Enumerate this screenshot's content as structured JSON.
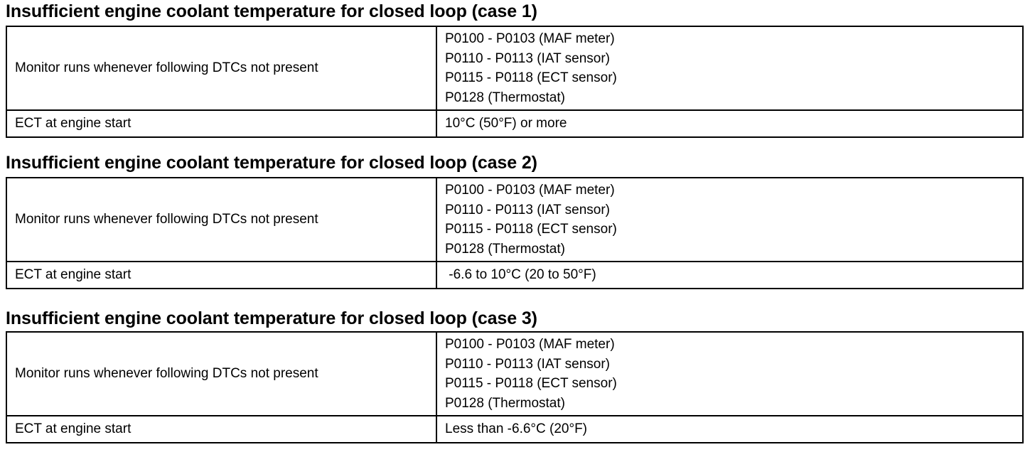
{
  "sections": [
    {
      "title": "Insufficient engine coolant temperature for closed loop (case 1)",
      "dtc_label": "Monitor runs whenever following DTCs not present",
      "dtcs": [
        "P0100 - P0103 (MAF meter)",
        "P0110 - P0113 (IAT sensor)",
        "P0115 - P0118 (ECT sensor)",
        "P0128 (Thermostat)"
      ],
      "ect_label": "ECT at engine start",
      "ect_value": "10°C (50°F) or more"
    },
    {
      "title": "Insufficient engine coolant temperature for closed loop (case 2)",
      "dtc_label": "Monitor runs whenever following DTCs not present",
      "dtcs": [
        "P0100 - P0103 (MAF meter)",
        "P0110 - P0113 (IAT sensor)",
        "P0115 - P0118 (ECT sensor)",
        "P0128 (Thermostat)"
      ],
      "ect_label": "ECT at engine start",
      "ect_value": " -6.6 to 10°C (20 to 50°F)"
    },
    {
      "title": "Insufficient engine coolant temperature for closed loop (case 3)",
      "dtc_label": "Monitor runs whenever following DTCs not present",
      "dtcs": [
        "P0100 - P0103 (MAF meter)",
        "P0110 - P0113 (IAT sensor)",
        "P0115 - P0118 (ECT sensor)",
        "P0128 (Thermostat)"
      ],
      "ect_label": "ECT at engine start",
      "ect_value": "Less than -6.6°C (20°F)"
    }
  ]
}
